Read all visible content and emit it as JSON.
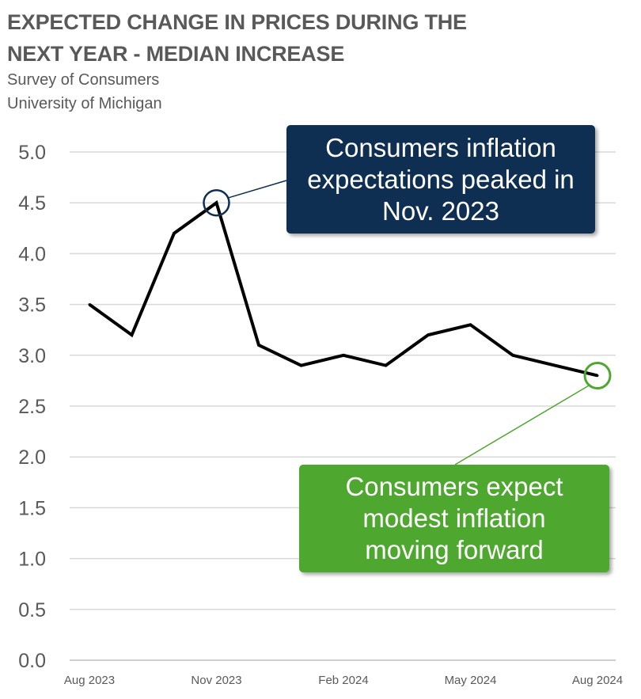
{
  "title_line1": "EXPECTED CHANGE IN PRICES DURING THE",
  "title_line2": "NEXT YEAR - MEDIAN INCREASE",
  "subtitle1": "Survey of Consumers",
  "subtitle2": "University of Michigan",
  "colors": {
    "line": "#000000",
    "peak": "#0e2e52",
    "latest": "#4ea72e",
    "grid": "#d9d9d9",
    "text": "#595959"
  },
  "annotations": {
    "peak": "Consumers inflation expectations peaked in Nov. 2023",
    "latest": "Consumers expect modest inflation moving forward"
  },
  "chart_data": {
    "type": "line",
    "x": [
      "Aug 2023",
      "Sep 2023",
      "Oct 2023",
      "Nov 2023",
      "Dec 2023",
      "Jan 2024",
      "Feb 2024",
      "Mar 2024",
      "Apr 2024",
      "May 2024",
      "Jun 2024",
      "Jul 2024",
      "Aug 2024"
    ],
    "values": [
      3.5,
      3.2,
      4.2,
      4.5,
      3.1,
      2.9,
      3.0,
      2.9,
      3.2,
      3.3,
      3.0,
      2.9,
      2.8
    ],
    "xtick_labels": [
      "Aug 2023",
      "Nov 2023",
      "Feb 2024",
      "May 2024",
      "Aug 2024"
    ],
    "xtick_indices": [
      0,
      3,
      6,
      9,
      12
    ],
    "yticks": [
      "0.0",
      "0.5",
      "1.0",
      "1.5",
      "2.0",
      "2.5",
      "3.0",
      "3.5",
      "4.0",
      "4.5",
      "5.0"
    ],
    "ylim": [
      0,
      5
    ],
    "grid": true,
    "highlighted_points": [
      3,
      12
    ]
  }
}
